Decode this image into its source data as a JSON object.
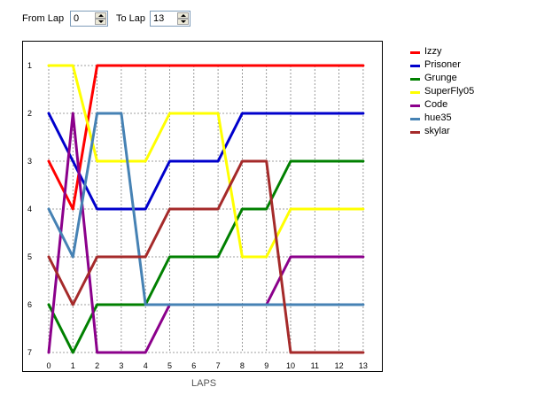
{
  "controls": {
    "from_label": "From Lap",
    "from_value": "0",
    "to_label": "To Lap",
    "to_value": "13"
  },
  "chart_data": {
    "type": "line",
    "xlabel": "LAPS",
    "x": [
      0,
      1,
      2,
      3,
      4,
      5,
      6,
      7,
      8,
      9,
      10,
      11,
      12,
      13
    ],
    "x_ticks": [
      "0",
      "1",
      "2",
      "3",
      "4",
      "5",
      "6",
      "7",
      "8",
      "9",
      "10",
      "11",
      "12",
      "13"
    ],
    "y_ticks": [
      "1",
      "2",
      "3",
      "4",
      "5",
      "6",
      "7"
    ],
    "ylim": [
      1,
      7
    ],
    "y_inverted": true,
    "grid": true,
    "legend": "right",
    "series": [
      {
        "name": "Izzy",
        "color": "#ff0000",
        "values": [
          3,
          4,
          1,
          1,
          1,
          1,
          1,
          1,
          1,
          1,
          1,
          1,
          1,
          1
        ]
      },
      {
        "name": "Prisoner",
        "color": "#0000cc",
        "values": [
          2,
          3,
          4,
          4,
          4,
          3,
          3,
          3,
          2,
          2,
          2,
          2,
          2,
          2
        ]
      },
      {
        "name": "Grunge",
        "color": "#008000",
        "values": [
          6,
          7,
          6,
          6,
          6,
          5,
          5,
          5,
          4,
          4,
          3,
          3,
          3,
          3
        ]
      },
      {
        "name": "SuperFly05",
        "color": "#ffff00",
        "values": [
          1,
          1,
          3,
          3,
          3,
          2,
          2,
          2,
          5,
          5,
          4,
          4,
          4,
          4
        ]
      },
      {
        "name": "Code",
        "color": "#8b008b",
        "values": [
          7,
          2,
          7,
          7,
          7,
          6,
          6,
          6,
          6,
          6,
          5,
          5,
          5,
          5
        ]
      },
      {
        "name": "hue35",
        "color": "#4682b4",
        "values": [
          4,
          5,
          2,
          2,
          6,
          6,
          6,
          6,
          6,
          6,
          6,
          6,
          6,
          6
        ]
      },
      {
        "name": "skylar",
        "color": "#a52a2a",
        "values": [
          5,
          6,
          5,
          5,
          5,
          4,
          4,
          4,
          3,
          3,
          7,
          7,
          7,
          7
        ]
      }
    ]
  }
}
